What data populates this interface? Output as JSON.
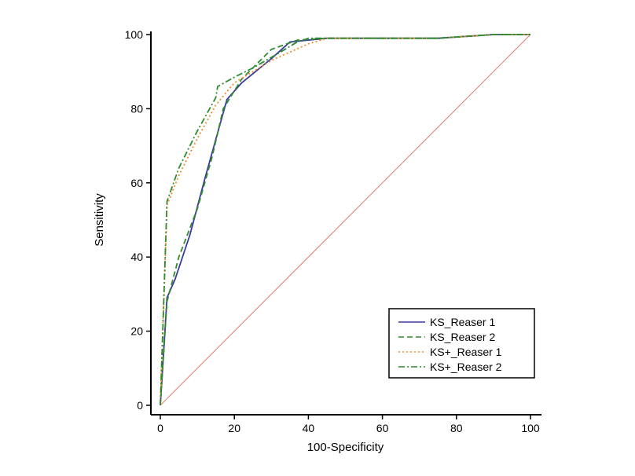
{
  "chart_data": {
    "type": "line",
    "title": "",
    "xlabel": "100-Specificity",
    "ylabel": "Sensitivity",
    "xlim": [
      0,
      100
    ],
    "ylim": [
      0,
      100
    ],
    "xticks": [
      0,
      20,
      40,
      60,
      80,
      100
    ],
    "yticks": [
      0,
      20,
      40,
      60,
      80,
      100
    ],
    "xtick_labels": [
      "0",
      "20",
      "40",
      "60",
      "80",
      "100"
    ],
    "ytick_labels": [
      "0",
      "20",
      "40",
      "60",
      "80",
      "100"
    ],
    "grid": false,
    "legend_position": "bottom-right",
    "reference_line": {
      "x": [
        0,
        100
      ],
      "y": [
        0,
        100
      ],
      "color": "#e07a6a"
    },
    "series": [
      {
        "name": "KS_Reaser 1",
        "color": "#3a3aa0",
        "dash": "solid",
        "x": [
          0,
          1.8,
          4,
          8,
          12,
          18,
          22,
          30,
          35,
          45,
          60,
          75,
          90,
          100
        ],
        "y": [
          0,
          29,
          34,
          46,
          61,
          82.5,
          87,
          93.5,
          98,
          99,
          99,
          99,
          100,
          100
        ]
      },
      {
        "name": "KS_Reaser 2",
        "color": "#2e8b2e",
        "dash": "dashed",
        "x": [
          0,
          1.8,
          5,
          10,
          14,
          17,
          22,
          30,
          37,
          45,
          60,
          75,
          90,
          100
        ],
        "y": [
          0,
          28,
          40,
          53,
          67,
          80,
          88,
          96,
          98.5,
          99,
          99,
          99,
          100,
          100
        ]
      },
      {
        "name": "KS+_Reaser 1",
        "color": "#f08a2c",
        "dash": "dotted",
        "x": [
          0,
          1.8,
          5,
          10,
          15,
          20,
          30,
          40,
          45,
          60,
          75,
          90,
          100
        ],
        "y": [
          0,
          54,
          62,
          72,
          81,
          87,
          93,
          97.5,
          99,
          99,
          99,
          100,
          100
        ]
      },
      {
        "name": "KS+_Reaser 2",
        "color": "#2e8b2e",
        "dash": "dashdot",
        "x": [
          0,
          1.8,
          5,
          10,
          15,
          15.5,
          20,
          25,
          32,
          37,
          40,
          45,
          60,
          75,
          90,
          100
        ],
        "y": [
          0,
          55,
          64,
          74,
          83,
          86,
          88.5,
          91,
          95,
          98,
          99,
          99,
          99,
          99,
          100,
          100
        ]
      }
    ]
  }
}
